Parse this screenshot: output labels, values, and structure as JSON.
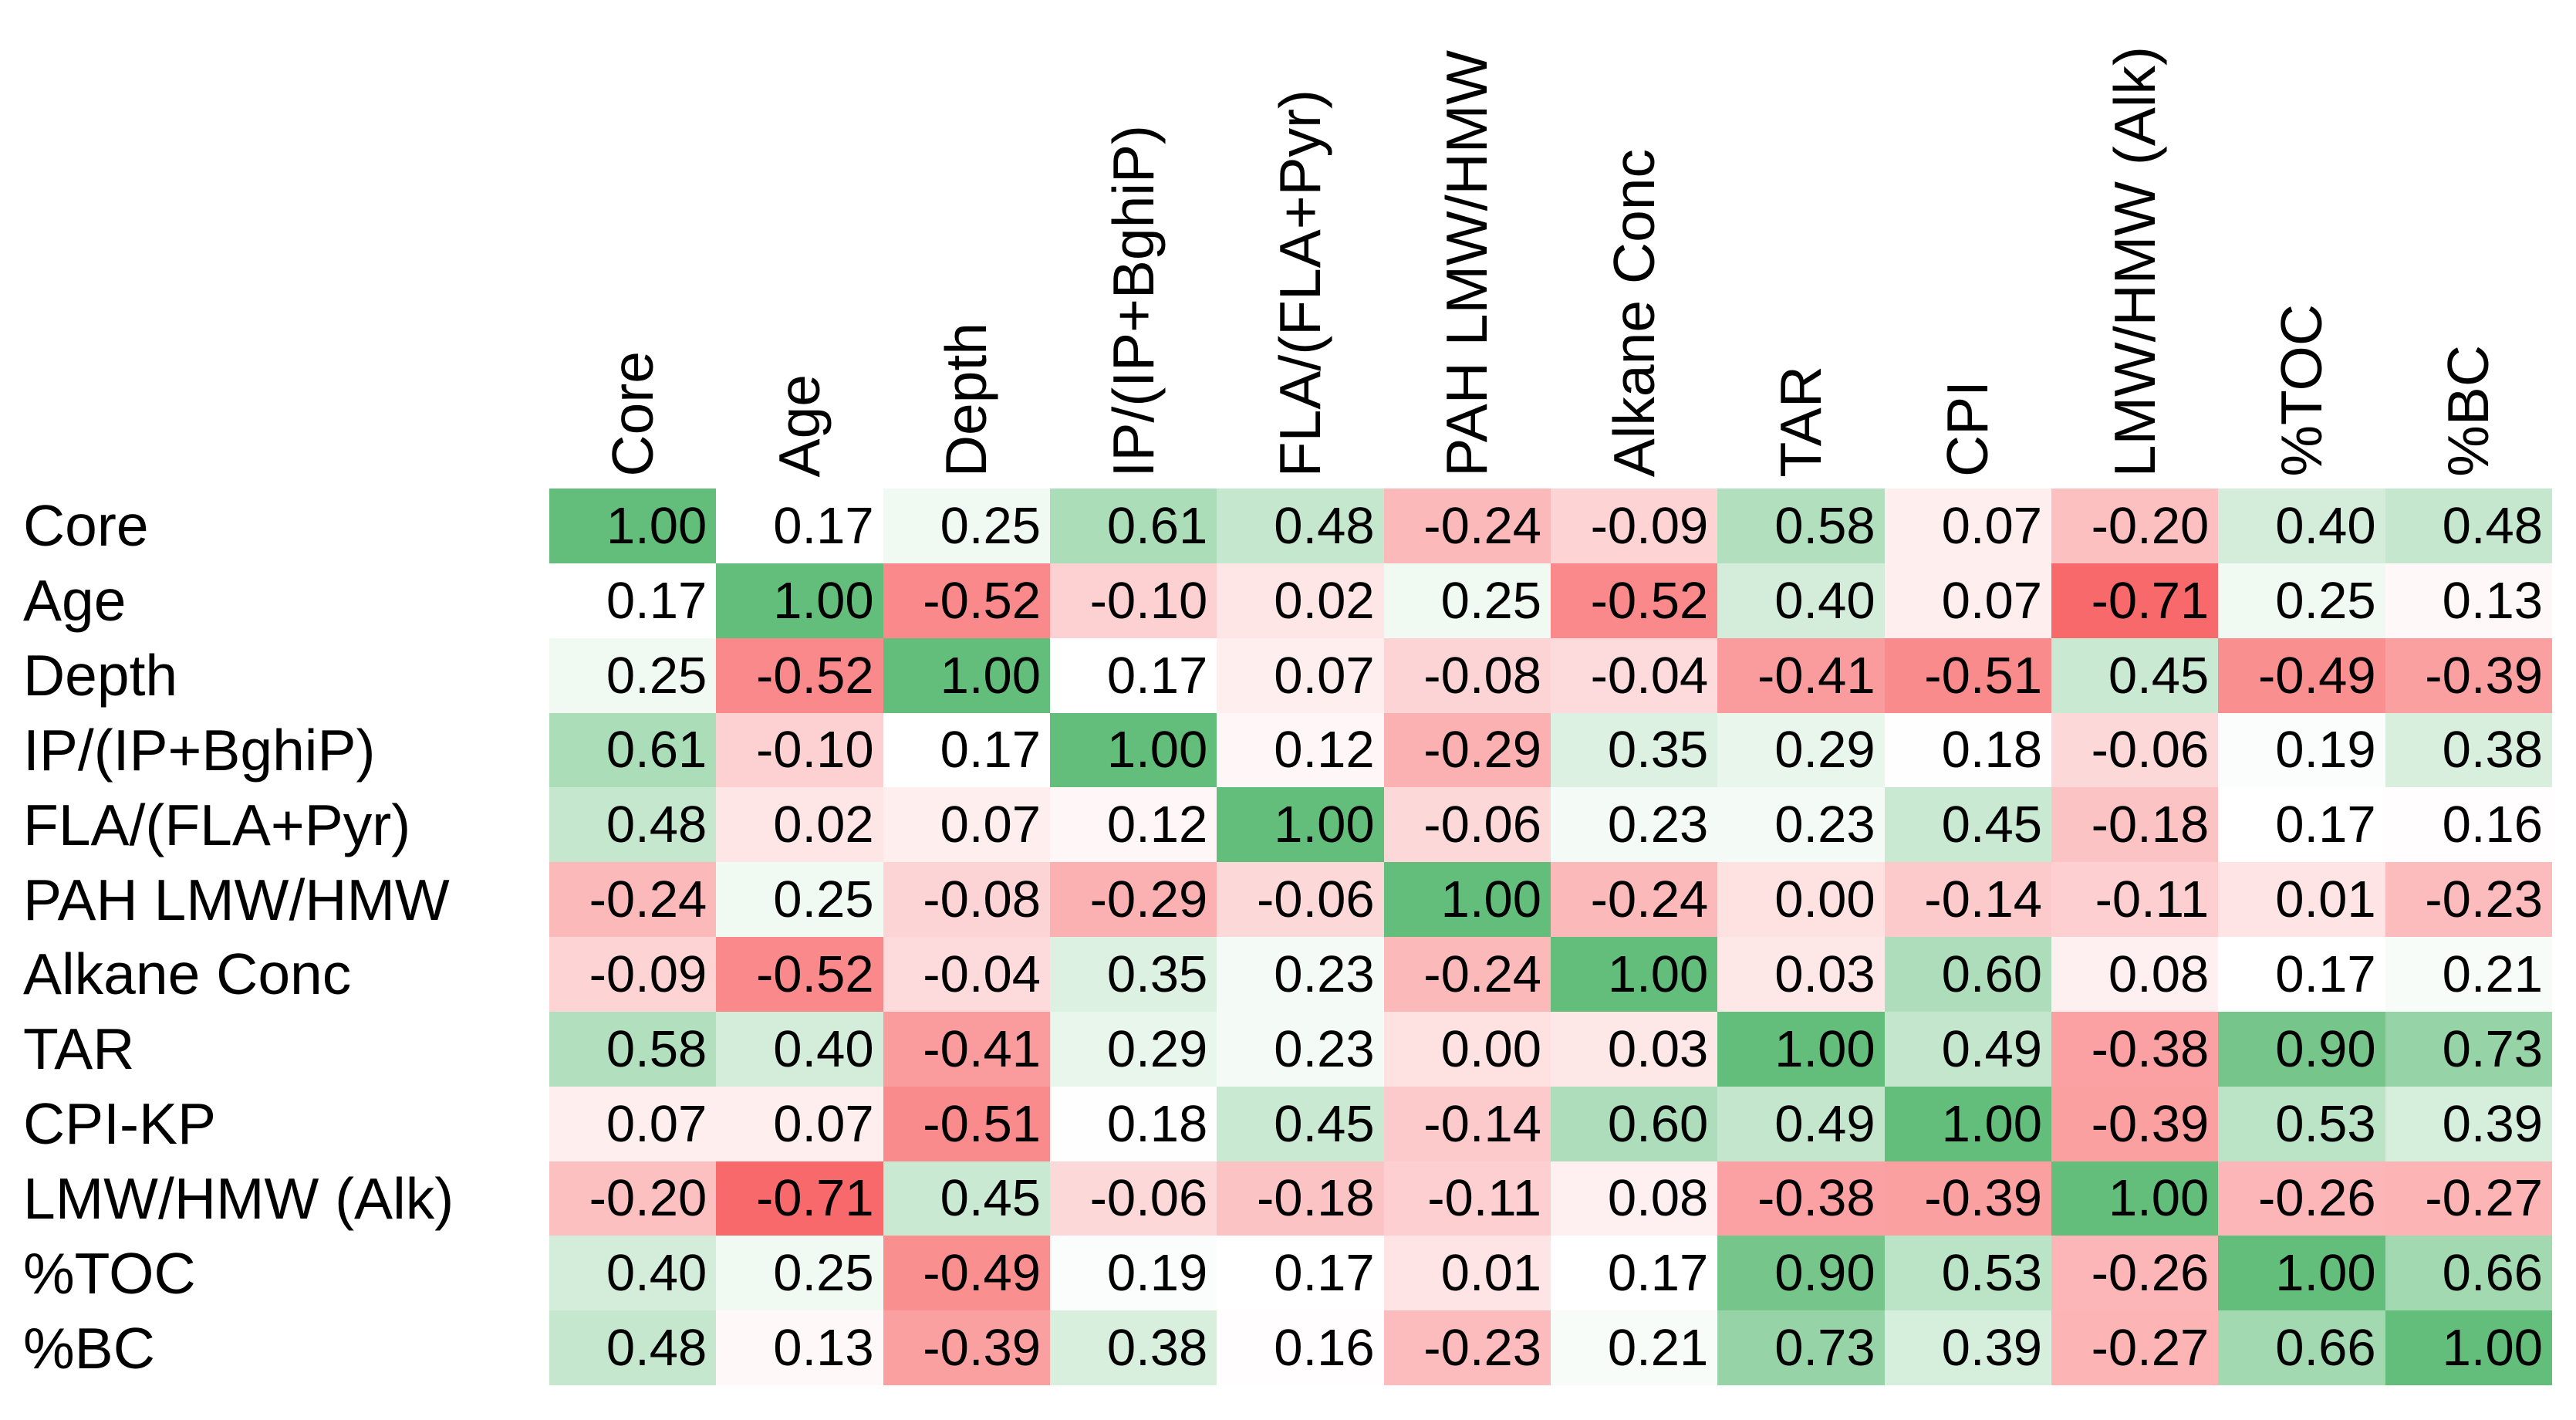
{
  "chart_data": {
    "type": "heatmap",
    "title": "",
    "row_labels": [
      "Core",
      "Age",
      "Depth",
      "IP/(IP+BghiP)",
      "FLA/(FLA+Pyr)",
      "PAH LMW/HMW",
      "Alkane Conc",
      "TAR",
      "CPI-KP",
      "LMW/HMW (Alk)",
      "%TOC",
      "%BC"
    ],
    "col_labels": [
      "Core",
      "Age",
      "Depth",
      "IP/(IP+BghiP)",
      "FLA/(FLA+Pyr)",
      "PAH LMW/HMW",
      "Alkane Conc",
      "TAR",
      "CPI",
      "LMW/HMW (Alk)",
      "%TOC",
      "%BC"
    ],
    "matrix": [
      [
        1.0,
        0.17,
        0.25,
        0.61,
        0.48,
        -0.24,
        -0.09,
        0.58,
        0.07,
        -0.2,
        0.4,
        0.48
      ],
      [
        0.17,
        1.0,
        -0.52,
        -0.1,
        0.02,
        0.25,
        -0.52,
        0.4,
        0.07,
        -0.71,
        0.25,
        0.13
      ],
      [
        0.25,
        -0.52,
        1.0,
        0.17,
        0.07,
        -0.08,
        -0.04,
        -0.41,
        -0.51,
        0.45,
        -0.49,
        -0.39
      ],
      [
        0.61,
        -0.1,
        0.17,
        1.0,
        0.12,
        -0.29,
        0.35,
        0.29,
        0.18,
        -0.06,
        0.19,
        0.38
      ],
      [
        0.48,
        0.02,
        0.07,
        0.12,
        1.0,
        -0.06,
        0.23,
        0.23,
        0.45,
        -0.18,
        0.17,
        0.16
      ],
      [
        -0.24,
        0.25,
        -0.08,
        -0.29,
        -0.06,
        1.0,
        -0.24,
        0.0,
        -0.14,
        -0.11,
        0.01,
        -0.23
      ],
      [
        -0.09,
        -0.52,
        -0.04,
        0.35,
        0.23,
        -0.24,
        1.0,
        0.03,
        0.6,
        0.08,
        0.17,
        0.21
      ],
      [
        0.58,
        0.4,
        -0.41,
        0.29,
        0.23,
        0.0,
        0.03,
        1.0,
        0.49,
        -0.38,
        0.9,
        0.73
      ],
      [
        0.07,
        0.07,
        -0.51,
        0.18,
        0.45,
        -0.14,
        0.6,
        0.49,
        1.0,
        -0.39,
        0.53,
        0.39
      ],
      [
        -0.2,
        -0.71,
        0.45,
        -0.06,
        -0.18,
        -0.11,
        0.08,
        -0.38,
        -0.39,
        1.0,
        -0.26,
        -0.27
      ],
      [
        0.4,
        0.25,
        -0.49,
        0.19,
        0.17,
        0.01,
        0.17,
        0.9,
        0.53,
        -0.26,
        1.0,
        0.66
      ],
      [
        0.48,
        0.13,
        -0.39,
        0.38,
        0.16,
        -0.23,
        0.21,
        0.73,
        0.39,
        -0.27,
        0.66,
        1.0
      ]
    ],
    "value_decimals": 2,
    "color_scale": {
      "min_color": "#F8696B",
      "mid_color": "#FFFFFF",
      "max_color": "#63BE7B",
      "min_value": -0.71,
      "mid_value": 0.17,
      "max_value": 1.0
    },
    "text_color": "#000000",
    "background_color": "#FFFFFF",
    "legend": "none",
    "grid": false
  }
}
